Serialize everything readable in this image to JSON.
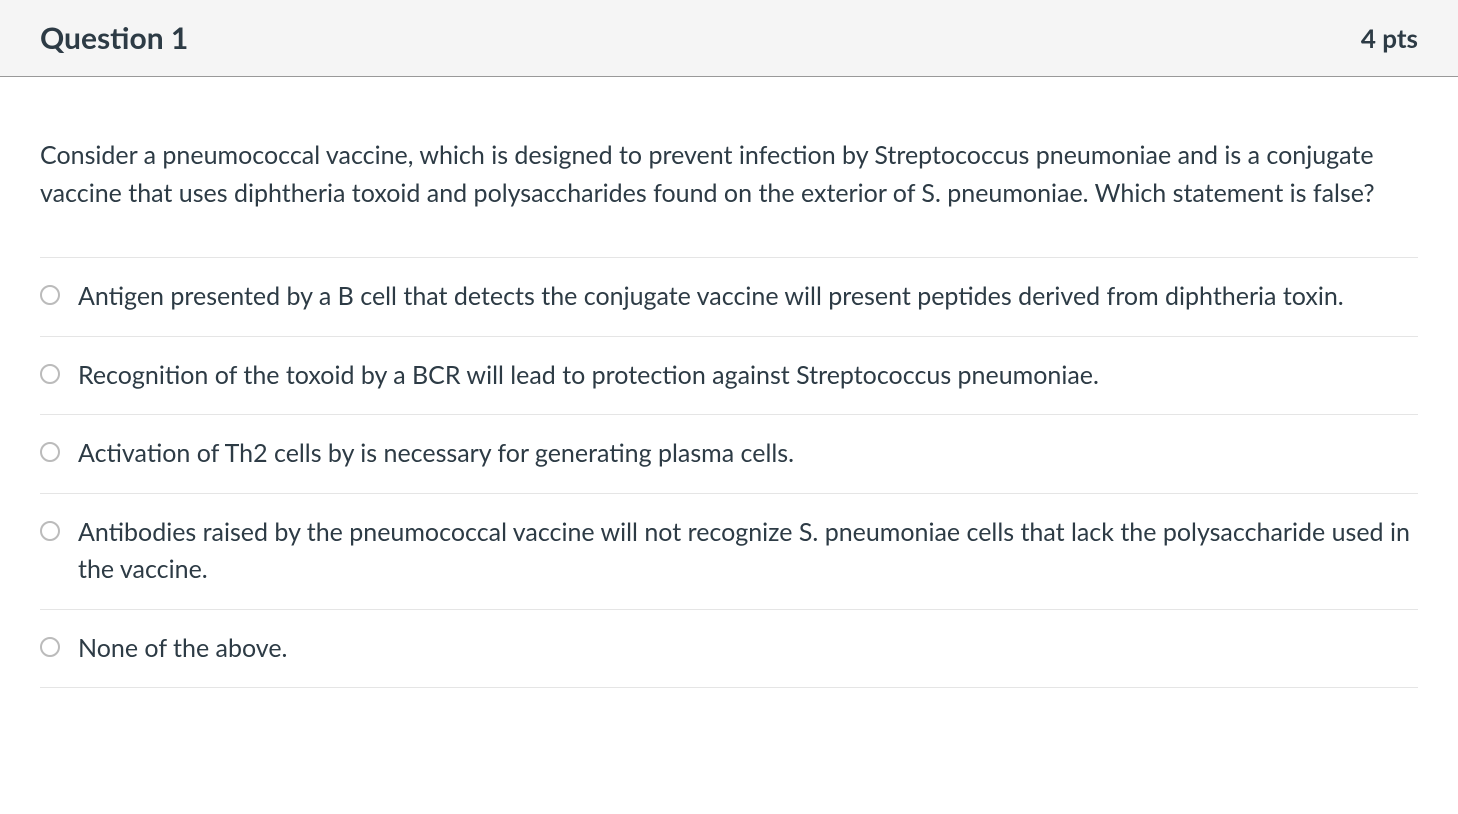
{
  "header": {
    "title": "Question 1",
    "points": "4 pts"
  },
  "question": {
    "text": "Consider a pneumococcal vaccine, which is designed to prevent infection by Streptococcus pneumoniae and is a conjugate vaccine that uses diphtheria toxoid and polysaccharides found on the exterior of S. pneumoniae. Which statement is false?"
  },
  "options": [
    {
      "text": "Antigen presented by a B cell that detects the conjugate vaccine will present peptides derived from diphtheria toxin."
    },
    {
      "text": "Recognition of the toxoid by a BCR will lead to protection against Streptococcus pneumoniae."
    },
    {
      "text": "Activation of Th2 cells by is necessary for generating plasma cells."
    },
    {
      "text": "Antibodies raised by the pneumococcal vaccine will not recognize S. pneumoniae cells that lack the polysaccharide used in the vaccine."
    },
    {
      "text": "None of the above."
    }
  ],
  "colors": {
    "header_bg": "#f5f5f5",
    "header_border": "#999999",
    "text": "#2d3b45",
    "option_border": "#e5e5e5",
    "radio_border": "#bbbbbb",
    "background": "#ffffff"
  }
}
